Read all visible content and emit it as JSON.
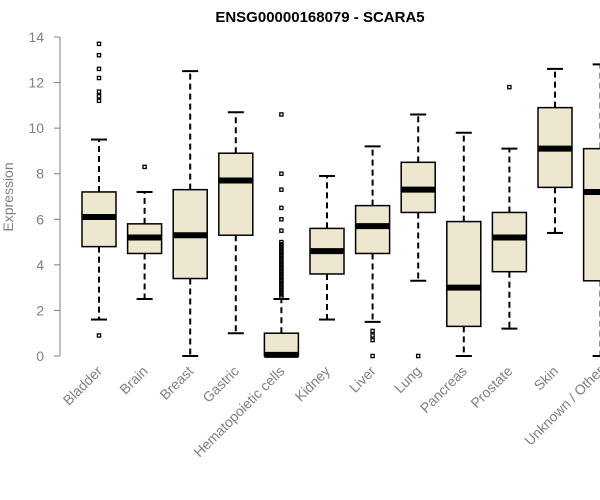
{
  "chart_data": {
    "type": "boxplot",
    "title": "ENSG00000168079 - SCARA5",
    "xlabel": "",
    "ylabel": "Expression",
    "ylim": [
      0,
      14
    ],
    "yticks": [
      0,
      2,
      4,
      6,
      8,
      10,
      12,
      14
    ],
    "grid": false,
    "box_color": "#ede7cf",
    "categories": [
      "Bladder",
      "Brain",
      "Breast",
      "Gastric",
      "Hematopoietic cells",
      "Kidney",
      "Liver",
      "Lung",
      "Pancreas",
      "Prostate",
      "Skin",
      "Unknown / Other"
    ],
    "boxes": [
      {
        "label": "Bladder",
        "whisker_low": 1.6,
        "q1": 4.8,
        "median": 6.1,
        "q3": 7.2,
        "whisker_high": 9.5,
        "outliers": [
          0.9,
          11.2,
          11.4,
          11.6,
          12.2,
          12.6,
          13.2,
          13.7
        ]
      },
      {
        "label": "Brain",
        "whisker_low": 2.5,
        "q1": 4.5,
        "median": 5.2,
        "q3": 5.8,
        "whisker_high": 7.2,
        "outliers": [
          8.3
        ]
      },
      {
        "label": "Breast",
        "whisker_low": 0.0,
        "q1": 3.4,
        "median": 5.3,
        "q3": 7.3,
        "whisker_high": 12.5,
        "outliers": []
      },
      {
        "label": "Gastric",
        "whisker_low": 1.0,
        "q1": 5.3,
        "median": 7.7,
        "q3": 8.9,
        "whisker_high": 10.7,
        "outliers": []
      },
      {
        "label": "Hematopoietic cells",
        "whisker_low": 0.0,
        "q1": 0.0,
        "median": 0.05,
        "q3": 1.0,
        "whisker_high": 2.5,
        "outliers": [
          2.6,
          2.7,
          2.8,
          2.9,
          3.0,
          3.1,
          3.2,
          3.3,
          3.4,
          3.5,
          3.6,
          3.7,
          3.8,
          3.9,
          4.0,
          4.1,
          4.2,
          4.3,
          4.4,
          4.5,
          4.6,
          4.7,
          4.8,
          4.9,
          5.0,
          5.5,
          6.0,
          6.5,
          7.3,
          8.0,
          10.6
        ]
      },
      {
        "label": "Kidney",
        "whisker_low": 1.6,
        "q1": 3.6,
        "median": 4.6,
        "q3": 5.6,
        "whisker_high": 7.9,
        "outliers": []
      },
      {
        "label": "Liver",
        "whisker_low": 1.5,
        "q1": 4.5,
        "median": 5.7,
        "q3": 6.6,
        "whisker_high": 9.2,
        "outliers": [
          0.0,
          0.7,
          0.9,
          1.1
        ]
      },
      {
        "label": "Lung",
        "whisker_low": 3.3,
        "q1": 6.3,
        "median": 7.3,
        "q3": 8.5,
        "whisker_high": 10.6,
        "outliers": [
          0.0
        ]
      },
      {
        "label": "Pancreas",
        "whisker_low": 0.0,
        "q1": 1.3,
        "median": 3.0,
        "q3": 5.9,
        "whisker_high": 9.8,
        "outliers": []
      },
      {
        "label": "Prostate",
        "whisker_low": 1.2,
        "q1": 3.7,
        "median": 5.2,
        "q3": 6.3,
        "whisker_high": 9.1,
        "outliers": [
          11.8
        ]
      },
      {
        "label": "Skin",
        "whisker_low": 5.4,
        "q1": 7.4,
        "median": 9.1,
        "q3": 10.9,
        "whisker_high": 12.6,
        "outliers": []
      },
      {
        "label": "Unknown / Other",
        "whisker_low": 0.0,
        "q1": 3.3,
        "median": 7.2,
        "q3": 9.1,
        "whisker_high": 12.8,
        "outliers": []
      }
    ]
  }
}
